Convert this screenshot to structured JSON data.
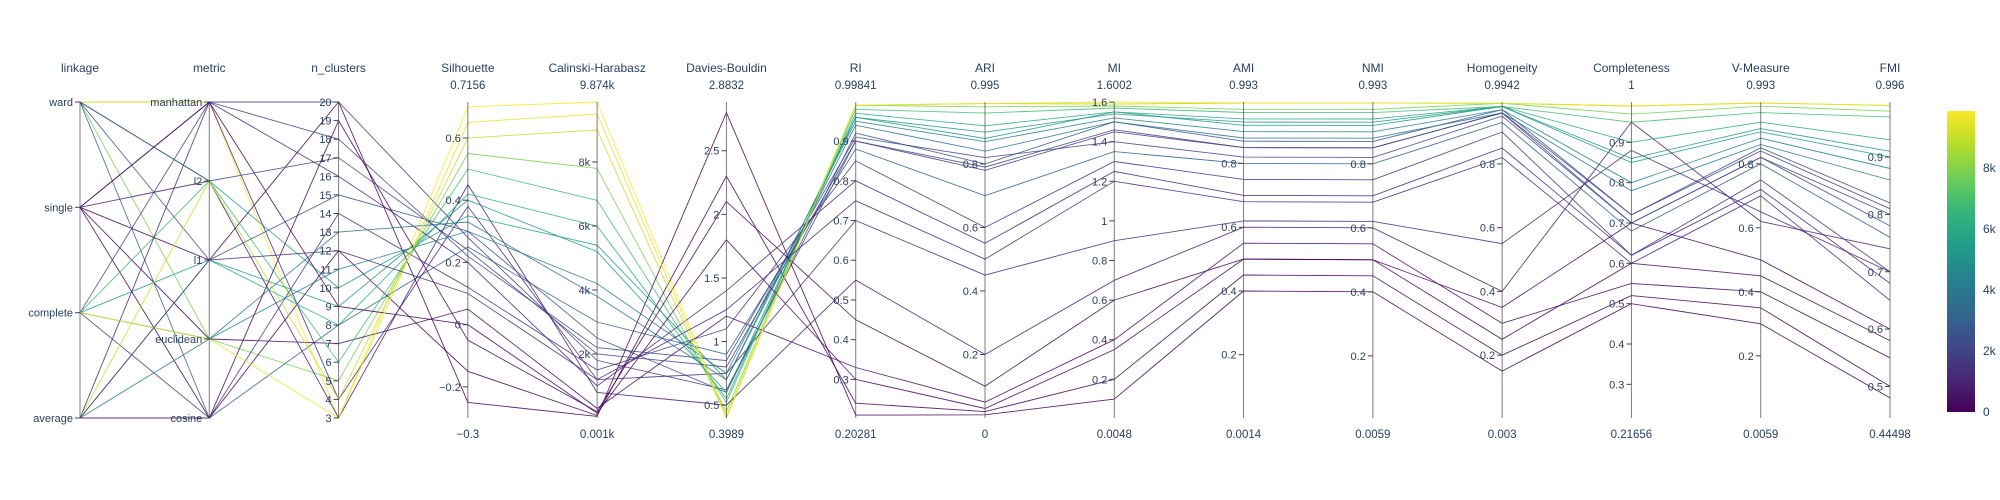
{
  "chart_data": {
    "type": "parallel_coordinates",
    "title": "",
    "colorscale": {
      "name": "viridis",
      "stops": [
        "#440154",
        "#482878",
        "#3e4989",
        "#31688e",
        "#26828e",
        "#1f9e89",
        "#35b779",
        "#6ece58",
        "#b5de2b",
        "#fde725"
      ],
      "range": [
        0,
        9874
      ],
      "tick_labels": [
        "0",
        "2k",
        "4k",
        "6k",
        "8k"
      ],
      "tick_values": [
        0,
        2000,
        4000,
        6000,
        8000
      ]
    },
    "dimensions": [
      {
        "label": "linkage",
        "type": "categorical",
        "categories": [
          "average",
          "complete",
          "single",
          "ward"
        ]
      },
      {
        "label": "metric",
        "type": "categorical",
        "categories": [
          "cosine",
          "euclidean",
          "l1",
          "l2",
          "manhattan"
        ]
      },
      {
        "label": "n_clusters",
        "type": "numeric",
        "range": [
          3,
          20
        ],
        "ticks": [
          3,
          4,
          5,
          6,
          7,
          8,
          9,
          10,
          11,
          12,
          13,
          14,
          15,
          16,
          17,
          18,
          19,
          20
        ],
        "tick_labels": [
          "3",
          "4",
          "5",
          "6",
          "7",
          "8",
          "9",
          "10",
          "11",
          "12",
          "13",
          "14",
          "15",
          "16",
          "17",
          "18",
          "19",
          "20"
        ]
      },
      {
        "label": "Silhouette",
        "type": "numeric",
        "range": [
          -0.3,
          0.7156
        ],
        "min_label": "−0.3",
        "max_label": "0.7156",
        "ticks": [
          -0.2,
          0,
          0.2,
          0.4,
          0.6
        ],
        "tick_labels": [
          "−0.2",
          "0",
          "0.2",
          "0.4",
          "0.6"
        ]
      },
      {
        "label": "Calinski-Harabasz",
        "type": "numeric",
        "range": [
          1,
          9874
        ],
        "min_label": "0.001k",
        "max_label": "9.874k",
        "ticks": [
          2000,
          4000,
          6000,
          8000
        ],
        "tick_labels": [
          "2k",
          "4k",
          "6k",
          "8k"
        ]
      },
      {
        "label": "Davies-Bouldin",
        "type": "numeric",
        "range": [
          0.3989,
          2.8832
        ],
        "min_label": "0.3989",
        "max_label": "2.8832",
        "ticks": [
          0.5,
          1,
          1.5,
          2,
          2.5
        ],
        "tick_labels": [
          "0.5",
          "1",
          "1.5",
          "2",
          "2.5"
        ]
      },
      {
        "label": "RI",
        "type": "numeric",
        "range": [
          0.20281,
          0.99841
        ],
        "min_label": "0.20281",
        "max_label": "0.99841",
        "ticks": [
          0.3,
          0.4,
          0.5,
          0.6,
          0.7,
          0.8,
          0.9
        ],
        "tick_labels": [
          "0.3",
          "0.4",
          "0.5",
          "0.6",
          "0.7",
          "0.8",
          "0.9"
        ]
      },
      {
        "label": "ARI",
        "type": "numeric",
        "range": [
          0,
          0.995
        ],
        "min_label": "0",
        "max_label": "0.995",
        "ticks": [
          0.2,
          0.4,
          0.6,
          0.8
        ],
        "tick_labels": [
          "0.2",
          "0.4",
          "0.6",
          "0.8"
        ]
      },
      {
        "label": "MI",
        "type": "numeric",
        "range": [
          0.0048,
          1.6002
        ],
        "min_label": "0.0048",
        "max_label": "1.6002",
        "ticks": [
          0.2,
          0.4,
          0.6,
          0.8,
          1,
          1.2,
          1.4,
          1.6
        ],
        "tick_labels": [
          "0.2",
          "0.4",
          "0.6",
          "0.8",
          "1",
          "1.2",
          "1.4",
          "1.6"
        ]
      },
      {
        "label": "AMI",
        "type": "numeric",
        "range": [
          0.0014,
          0.993
        ],
        "min_label": "0.0014",
        "max_label": "0.993",
        "ticks": [
          0.2,
          0.4,
          0.6,
          0.8
        ],
        "tick_labels": [
          "0.2",
          "0.4",
          "0.6",
          "0.8"
        ]
      },
      {
        "label": "NMI",
        "type": "numeric",
        "range": [
          0.0059,
          0.993
        ],
        "min_label": "0.0059",
        "max_label": "0.993",
        "ticks": [
          0.2,
          0.4,
          0.6,
          0.8
        ],
        "tick_labels": [
          "0.2",
          "0.4",
          "0.6",
          "0.8"
        ]
      },
      {
        "label": "Homogeneity",
        "type": "numeric",
        "range": [
          0.003,
          0.9942
        ],
        "min_label": "0.003",
        "max_label": "0.9942",
        "ticks": [
          0.2,
          0.4,
          0.6,
          0.8
        ],
        "tick_labels": [
          "0.2",
          "0.4",
          "0.6",
          "0.8"
        ]
      },
      {
        "label": "Completeness",
        "type": "numeric",
        "range": [
          0.21656,
          1
        ],
        "min_label": "0.21656",
        "max_label": "1",
        "ticks": [
          0.3,
          0.4,
          0.5,
          0.6,
          0.7,
          0.8,
          0.9
        ],
        "tick_labels": [
          "0.3",
          "0.4",
          "0.5",
          "0.6",
          "0.7",
          "0.8",
          "0.9"
        ]
      },
      {
        "label": "V-Measure",
        "type": "numeric",
        "range": [
          0.0059,
          0.993
        ],
        "min_label": "0.0059",
        "max_label": "0.993",
        "ticks": [
          0.2,
          0.4,
          0.6,
          0.8
        ],
        "tick_labels": [
          "0.2",
          "0.4",
          "0.6",
          "0.8"
        ]
      },
      {
        "label": "FMI",
        "type": "numeric",
        "range": [
          0.44498,
          0.996
        ],
        "min_label": "0.44498",
        "max_label": "0.996",
        "ticks": [
          0.5,
          0.6,
          0.7,
          0.8,
          0.9
        ],
        "tick_labels": [
          "0.5",
          "0.6",
          "0.7",
          "0.8",
          "0.9"
        ]
      }
    ],
    "records": [
      [
        "ward",
        "manhattan",
        20,
        0.28,
        1800,
        0.62,
        0.9,
        0.78,
        1.45,
        0.85,
        0.85,
        0.96,
        0.7,
        0.82,
        0.8
      ],
      [
        "ward",
        "manhattan",
        3,
        0.7,
        9874,
        0.42,
        0.99,
        0.99,
        1.59,
        0.99,
        0.99,
        0.99,
        0.99,
        0.99,
        0.99
      ],
      [
        "ward",
        "l2",
        10,
        0.35,
        5400,
        0.7,
        0.96,
        0.88,
        1.55,
        0.92,
        0.92,
        0.98,
        0.85,
        0.9,
        0.9
      ],
      [
        "ward",
        "euclidean",
        5,
        0.55,
        7800,
        0.45,
        0.99,
        0.98,
        1.58,
        0.97,
        0.97,
        0.99,
        0.97,
        0.98,
        0.98
      ],
      [
        "ward",
        "l1",
        15,
        0.3,
        2500,
        0.6,
        0.92,
        0.8,
        1.5,
        0.87,
        0.87,
        0.97,
        0.72,
        0.85,
        0.82
      ],
      [
        "ward",
        "cosine",
        8,
        0.25,
        3000,
        0.9,
        0.88,
        0.7,
        1.35,
        0.8,
        0.8,
        0.93,
        0.68,
        0.8,
        0.76
      ],
      [
        "single",
        "manhattan",
        4,
        0.38,
        1200,
        0.75,
        0.7,
        0.45,
        0.9,
        0.62,
        0.62,
        0.55,
        0.88,
        0.65,
        0.7
      ],
      [
        "single",
        "l2",
        3,
        0.45,
        800,
        0.5,
        0.55,
        0.2,
        0.7,
        0.6,
        0.6,
        0.4,
        0.95,
        0.62,
        0.74
      ],
      [
        "single",
        "euclidean",
        7,
        0.05,
        300,
        1.2,
        0.33,
        0.05,
        0.4,
        0.55,
        0.55,
        0.3,
        0.55,
        0.4,
        0.55
      ],
      [
        "single",
        "cosine",
        12,
        -0.15,
        80,
        2.3,
        0.24,
        0.02,
        0.2,
        0.45,
        0.45,
        0.2,
        0.52,
        0.35,
        0.5
      ],
      [
        "single",
        "l1",
        20,
        -0.25,
        50,
        2.8,
        0.21,
        0.01,
        0.1,
        0.4,
        0.4,
        0.15,
        0.5,
        0.3,
        0.48
      ],
      [
        "complete",
        "manhattan",
        18,
        0.22,
        2200,
        0.85,
        0.91,
        0.82,
        1.4,
        0.82,
        0.82,
        0.95,
        0.7,
        0.82,
        0.78
      ],
      [
        "complete",
        "l2",
        6,
        0.5,
        6800,
        0.52,
        0.98,
        0.96,
        1.57,
        0.96,
        0.96,
        0.98,
        0.95,
        0.96,
        0.97
      ],
      [
        "complete",
        "euclidean",
        11,
        0.3,
        4200,
        0.75,
        0.95,
        0.87,
        1.52,
        0.9,
        0.9,
        0.97,
        0.8,
        0.88,
        0.88
      ],
      [
        "complete",
        "cosine",
        14,
        0.12,
        1500,
        1.1,
        0.85,
        0.6,
        1.3,
        0.75,
        0.75,
        0.9,
        0.62,
        0.75,
        0.7
      ],
      [
        "complete",
        "l1",
        9,
        0.4,
        5200,
        0.6,
        0.96,
        0.9,
        1.54,
        0.93,
        0.93,
        0.98,
        0.86,
        0.91,
        0.91
      ],
      [
        "average",
        "manhattan",
        16,
        0.2,
        1000,
        1.4,
        0.8,
        0.55,
        1.25,
        0.7,
        0.7,
        0.85,
        0.62,
        0.72,
        0.68
      ],
      [
        "average",
        "l2",
        4,
        0.6,
        9000,
        0.4,
        0.99,
        0.99,
        1.59,
        0.99,
        0.99,
        0.99,
        0.99,
        0.99,
        0.99
      ],
      [
        "average",
        "euclidean",
        13,
        0.33,
        3800,
        0.7,
        0.94,
        0.84,
        1.5,
        0.88,
        0.88,
        0.96,
        0.78,
        0.86,
        0.86
      ],
      [
        "average",
        "cosine",
        19,
        -0.05,
        200,
        2.1,
        0.45,
        0.1,
        0.6,
        0.5,
        0.5,
        0.35,
        0.7,
        0.5,
        0.6
      ],
      [
        "average",
        "l1",
        8,
        0.42,
        6000,
        0.55,
        0.97,
        0.92,
        1.55,
        0.94,
        0.94,
        0.98,
        0.9,
        0.93,
        0.93
      ],
      [
        "ward",
        "l2",
        17,
        0.24,
        2000,
        0.8,
        0.9,
        0.79,
        1.46,
        0.85,
        0.85,
        0.96,
        0.72,
        0.84,
        0.81
      ],
      [
        "single",
        "manhattan",
        9,
        0.0,
        150,
        1.8,
        0.3,
        0.03,
        0.35,
        0.5,
        0.5,
        0.25,
        0.6,
        0.45,
        0.58
      ],
      [
        "complete",
        "euclidean",
        3,
        0.65,
        9500,
        0.41,
        0.99,
        0.99,
        1.6,
        0.99,
        0.99,
        0.99,
        0.99,
        0.99,
        0.99
      ],
      [
        "average",
        "l1",
        12,
        0.1,
        1200,
        1.25,
        0.75,
        0.5,
        1.2,
        0.68,
        0.68,
        0.82,
        0.6,
        0.7,
        0.65
      ]
    ]
  }
}
